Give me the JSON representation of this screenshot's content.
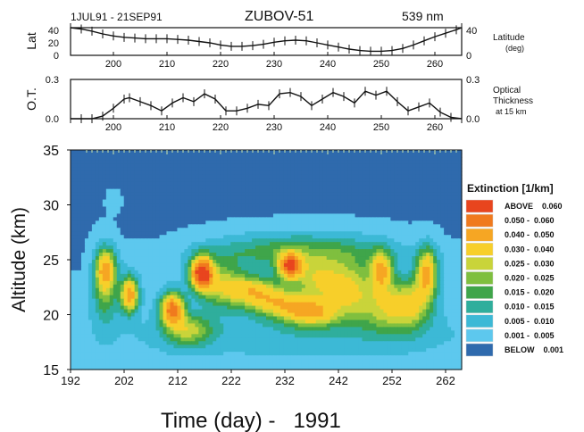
{
  "header": {
    "date_range": "1JUL91 - 21SEP91",
    "station": "ZUBOV-51",
    "wavelength": "539 nm"
  },
  "chart_data": [
    {
      "type": "line",
      "panel": "latitude",
      "ylabel": "Lat",
      "right_label": [
        "Latitude",
        "(deg)"
      ],
      "right_ticks": [
        "40",
        "0"
      ],
      "left_ticks": [
        "40",
        "20",
        "0"
      ],
      "xlim": [
        192,
        265
      ],
      "ylim": [
        0,
        40
      ],
      "x_tick_labels": [
        "200",
        "210",
        "220",
        "230",
        "240",
        "250",
        "260"
      ],
      "x": [
        192,
        194,
        196,
        198,
        200,
        202,
        204,
        206,
        208,
        210,
        212,
        214,
        216,
        218,
        220,
        222,
        224,
        226,
        228,
        230,
        232,
        234,
        236,
        238,
        240,
        242,
        244,
        246,
        248,
        250,
        252,
        254,
        256,
        258,
        260,
        262,
        264,
        265
      ],
      "y": [
        40,
        38,
        35,
        31,
        28,
        26,
        25,
        24,
        24,
        24,
        23,
        22,
        20,
        18,
        15,
        13,
        13,
        14,
        16,
        19,
        21,
        22,
        21,
        18,
        15,
        12,
        9,
        7,
        6,
        6,
        7,
        10,
        15,
        21,
        27,
        32,
        37,
        40
      ]
    },
    {
      "type": "line",
      "panel": "optical_thickness",
      "ylabel": "O.T.",
      "right_label": [
        "Optical",
        "Thickness",
        "at 15 km"
      ],
      "right_ticks": [
        "0.3",
        "0.0"
      ],
      "left_ticks": [
        "0.3",
        "0.0"
      ],
      "xlim": [
        192,
        265
      ],
      "ylim": [
        0,
        0.3
      ],
      "x_tick_labels": [
        "200",
        "210",
        "220",
        "230",
        "240",
        "250",
        "260"
      ],
      "x": [
        192,
        194,
        196,
        198,
        200,
        202,
        203,
        205,
        207,
        209,
        211,
        213,
        215,
        217,
        219,
        221,
        223,
        225,
        227,
        229,
        231,
        233,
        235,
        237,
        239,
        241,
        243,
        245,
        247,
        249,
        251,
        253,
        255,
        257,
        259,
        261,
        263,
        265
      ],
      "y": [
        0.0,
        0.0,
        0.0,
        0.02,
        0.08,
        0.15,
        0.16,
        0.13,
        0.1,
        0.06,
        0.12,
        0.16,
        0.13,
        0.19,
        0.15,
        0.06,
        0.06,
        0.08,
        0.11,
        0.1,
        0.19,
        0.2,
        0.17,
        0.1,
        0.15,
        0.2,
        0.17,
        0.12,
        0.21,
        0.18,
        0.21,
        0.13,
        0.06,
        0.09,
        0.12,
        0.05,
        0.01,
        0.0
      ]
    },
    {
      "type": "heatmap",
      "panel": "extinction",
      "title": "",
      "xlabel": "Time (day) -   1991",
      "ylabel": "Altitude (km)",
      "xlim": [
        192,
        265
      ],
      "ylim": [
        15,
        35
      ],
      "x_ticks": [
        192,
        202,
        212,
        222,
        232,
        242,
        252,
        262
      ],
      "y_ticks": [
        15,
        20,
        25,
        30,
        35
      ],
      "legend_title": "Extinction [1/km]",
      "legend": [
        {
          "label": "ABOVE    0.060",
          "color": "#e8451e"
        },
        {
          "label": "0.050 -  0.060",
          "color": "#f07a1e"
        },
        {
          "label": "0.040 -  0.050",
          "color": "#f6a623"
        },
        {
          "label": "0.030 -  0.040",
          "color": "#f7cf2a"
        },
        {
          "label": "0.025 -  0.030",
          "color": "#c9d43a"
        },
        {
          "label": "0.020 -  0.025",
          "color": "#7fbf3f"
        },
        {
          "label": "0.015 -  0.020",
          "color": "#3fa54a"
        },
        {
          "label": "0.010 -  0.015",
          "color": "#2fae9c"
        },
        {
          "label": "0.005 -  0.010",
          "color": "#3cb9d6"
        },
        {
          "label": "0.001 -  0.005",
          "color": "#5dc8ee"
        },
        {
          "label": "BELOW    0.001",
          "color": "#2f6aad"
        }
      ],
      "background_level": 1,
      "features": [
        {
          "day": 198.5,
          "alt": 24.2,
          "peak": 0.032,
          "sd_day": 1.2,
          "sd_alt": 1.2
        },
        {
          "day": 203,
          "alt": 21.8,
          "peak": 0.045,
          "sd_day": 1.1,
          "sd_alt": 1.1
        },
        {
          "day": 198.5,
          "alt": 22.5,
          "peak": 0.02,
          "sd_day": 1.6,
          "sd_alt": 2.2
        },
        {
          "day": 211,
          "alt": 20.5,
          "peak": 0.052,
          "sd_day": 1.5,
          "sd_alt": 1.0
        },
        {
          "day": 214,
          "alt": 18.6,
          "peak": 0.022,
          "sd_day": 3.0,
          "sd_alt": 1.0
        },
        {
          "day": 216.5,
          "alt": 23.8,
          "peak": 0.065,
          "sd_day": 1.4,
          "sd_alt": 1.0
        },
        {
          "day": 220,
          "alt": 22.8,
          "peak": 0.022,
          "sd_day": 3.0,
          "sd_alt": 1.5
        },
        {
          "day": 226,
          "alt": 22.2,
          "peak": 0.03,
          "sd_day": 3.5,
          "sd_alt": 0.9
        },
        {
          "day": 231,
          "alt": 21.0,
          "peak": 0.028,
          "sd_day": 4.0,
          "sd_alt": 0.9
        },
        {
          "day": 233,
          "alt": 24.4,
          "peak": 0.055,
          "sd_day": 1.5,
          "sd_alt": 0.8
        },
        {
          "day": 237,
          "alt": 20.2,
          "peak": 0.034,
          "sd_day": 3.5,
          "sd_alt": 0.9
        },
        {
          "day": 238,
          "alt": 23.2,
          "peak": 0.024,
          "sd_day": 3.0,
          "sd_alt": 1.3
        },
        {
          "day": 244,
          "alt": 22.3,
          "peak": 0.026,
          "sd_day": 3.0,
          "sd_alt": 1.8
        },
        {
          "day": 250,
          "alt": 24.0,
          "peak": 0.038,
          "sd_day": 1.4,
          "sd_alt": 1.2
        },
        {
          "day": 251,
          "alt": 20.7,
          "peak": 0.024,
          "sd_day": 3.5,
          "sd_alt": 1.6
        },
        {
          "day": 258.5,
          "alt": 23.8,
          "peak": 0.04,
          "sd_day": 1.3,
          "sd_alt": 1.5
        },
        {
          "day": 256,
          "alt": 21.0,
          "peak": 0.022,
          "sd_day": 2.5,
          "sd_alt": 1.6
        },
        {
          "day": 240,
          "alt": 25.8,
          "peak": 0.012,
          "sd_day": 9.0,
          "sd_alt": 1.2
        },
        {
          "day": 228,
          "alt": 25.8,
          "peak": 0.01,
          "sd_day": 8.0,
          "sd_alt": 1.1
        },
        {
          "day": 234,
          "alt": 18.2,
          "peak": 0.006,
          "sd_day": 22.0,
          "sd_alt": 1.4
        },
        {
          "day": 200,
          "alt": 30.3,
          "peak": 0.003,
          "sd_day": 0.8,
          "sd_alt": 0.6
        }
      ]
    }
  ]
}
